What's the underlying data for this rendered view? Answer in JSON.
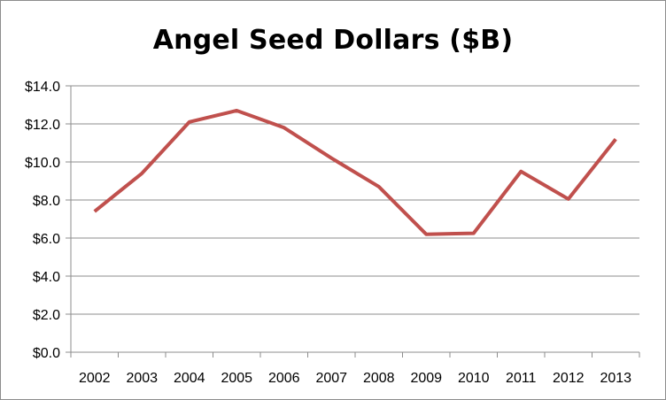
{
  "chart_data": {
    "type": "line",
    "title": "Angel Seed Dollars ($B)",
    "xlabel": "",
    "ylabel": "",
    "categories": [
      "2002",
      "2003",
      "2004",
      "2005",
      "2006",
      "2007",
      "2008",
      "2009",
      "2010",
      "2011",
      "2012",
      "2013"
    ],
    "series": [
      {
        "values": [
          7.4,
          9.4,
          12.1,
          12.7,
          11.8,
          10.2,
          8.7,
          6.2,
          6.25,
          9.5,
          8.05,
          11.2
        ],
        "color": "#c0504d"
      }
    ],
    "ylim": [
      0,
      14
    ],
    "y_ticks": [
      "$0.0",
      "$2.0",
      "$4.0",
      "$6.0",
      "$8.0",
      "$10.0",
      "$12.0",
      "$14.0"
    ],
    "grid": "horizontal",
    "legend": "none"
  }
}
